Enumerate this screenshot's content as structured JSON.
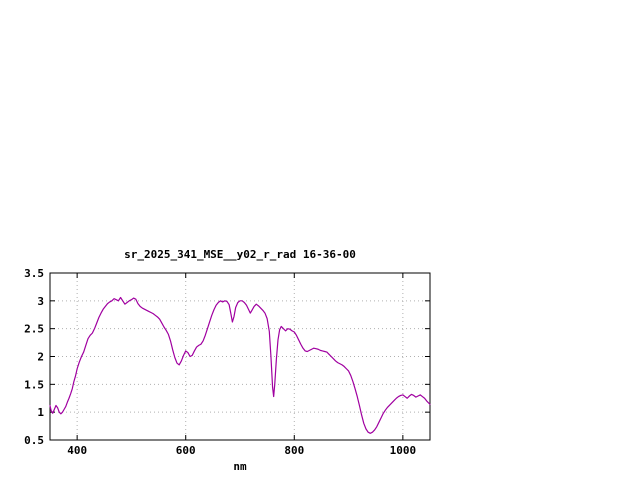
{
  "chart": {
    "title": "sr_2025_341_MSE__y02_r_rad 16-36-00",
    "xlabel": "nm"
  },
  "chart_data": {
    "type": "line",
    "title": "sr_2025_341_MSE__y02_r_rad 16-36-00",
    "xlabel": "nm",
    "ylabel": "",
    "xlim": [
      350,
      1050
    ],
    "ylim": [
      0.5,
      3.5
    ],
    "xticks": [
      400,
      600,
      800,
      1000
    ],
    "yticks": [
      0.5,
      1,
      1.5,
      2,
      2.5,
      3,
      3.5
    ],
    "grid": true,
    "legend": "none",
    "line_color": "#a000a0",
    "grid_color": "#b0b0b0",
    "axis_color": "#000000",
    "x": [
      350,
      352,
      355,
      358,
      361,
      364,
      367,
      370,
      373,
      376,
      379,
      382,
      385,
      388,
      391,
      394,
      397,
      400,
      404,
      408,
      412,
      416,
      420,
      424,
      428,
      432,
      436,
      440,
      444,
      448,
      452,
      456,
      460,
      464,
      468,
      472,
      476,
      480,
      484,
      488,
      492,
      496,
      500,
      504,
      508,
      512,
      516,
      520,
      524,
      528,
      532,
      536,
      540,
      544,
      548,
      552,
      556,
      560,
      564,
      568,
      572,
      576,
      580,
      584,
      588,
      592,
      596,
      600,
      604,
      608,
      612,
      616,
      620,
      624,
      628,
      632,
      636,
      640,
      644,
      648,
      652,
      656,
      660,
      664,
      668,
      672,
      676,
      680,
      683,
      686,
      689,
      692,
      696,
      700,
      704,
      708,
      712,
      716,
      719,
      722,
      726,
      730,
      734,
      738,
      742,
      746,
      750,
      754,
      757,
      760,
      762,
      764,
      767,
      770,
      773,
      776,
      780,
      784,
      788,
      792,
      796,
      800,
      804,
      808,
      812,
      816,
      820,
      824,
      828,
      832,
      836,
      840,
      844,
      848,
      852,
      856,
      860,
      864,
      868,
      872,
      876,
      880,
      884,
      888,
      892,
      896,
      900,
      904,
      908,
      912,
      916,
      920,
      924,
      928,
      932,
      936,
      940,
      944,
      948,
      952,
      956,
      960,
      964,
      968,
      972,
      976,
      980,
      984,
      988,
      992,
      996,
      1000,
      1004,
      1008,
      1012,
      1016,
      1020,
      1024,
      1028,
      1032,
      1036,
      1040,
      1044,
      1048,
      1050
    ],
    "y": [
      1.12,
      1.03,
      0.98,
      1.05,
      1.12,
      1.08,
      1.0,
      0.97,
      1.0,
      1.05,
      1.1,
      1.18,
      1.25,
      1.33,
      1.42,
      1.55,
      1.65,
      1.78,
      1.9,
      2.0,
      2.08,
      2.2,
      2.32,
      2.38,
      2.42,
      2.5,
      2.6,
      2.7,
      2.78,
      2.85,
      2.9,
      2.95,
      2.98,
      3.0,
      3.04,
      3.02,
      3.0,
      3.06,
      3.0,
      2.94,
      2.97,
      3.0,
      3.02,
      3.05,
      3.03,
      2.95,
      2.9,
      2.87,
      2.85,
      2.83,
      2.81,
      2.79,
      2.77,
      2.74,
      2.71,
      2.67,
      2.6,
      2.53,
      2.47,
      2.4,
      2.28,
      2.12,
      1.98,
      1.88,
      1.85,
      1.92,
      2.02,
      2.1,
      2.07,
      2.0,
      2.02,
      2.1,
      2.17,
      2.2,
      2.22,
      2.28,
      2.38,
      2.5,
      2.62,
      2.74,
      2.84,
      2.92,
      2.97,
      3.0,
      2.98,
      3.0,
      2.99,
      2.93,
      2.78,
      2.62,
      2.72,
      2.88,
      2.97,
      3.0,
      3.0,
      2.97,
      2.92,
      2.84,
      2.78,
      2.83,
      2.9,
      2.94,
      2.91,
      2.87,
      2.83,
      2.78,
      2.68,
      2.45,
      2.0,
      1.45,
      1.28,
      1.5,
      1.95,
      2.3,
      2.48,
      2.54,
      2.5,
      2.46,
      2.5,
      2.49,
      2.46,
      2.44,
      2.38,
      2.3,
      2.22,
      2.15,
      2.1,
      2.09,
      2.11,
      2.13,
      2.15,
      2.14,
      2.13,
      2.11,
      2.1,
      2.09,
      2.08,
      2.04,
      2.0,
      1.96,
      1.92,
      1.89,
      1.87,
      1.85,
      1.82,
      1.78,
      1.74,
      1.66,
      1.55,
      1.42,
      1.28,
      1.12,
      0.95,
      0.8,
      0.7,
      0.64,
      0.62,
      0.64,
      0.68,
      0.74,
      0.82,
      0.9,
      0.98,
      1.04,
      1.09,
      1.13,
      1.17,
      1.21,
      1.25,
      1.28,
      1.3,
      1.31,
      1.28,
      1.25,
      1.29,
      1.32,
      1.3,
      1.27,
      1.29,
      1.31,
      1.28,
      1.25,
      1.2,
      1.16,
      1.14
    ]
  }
}
